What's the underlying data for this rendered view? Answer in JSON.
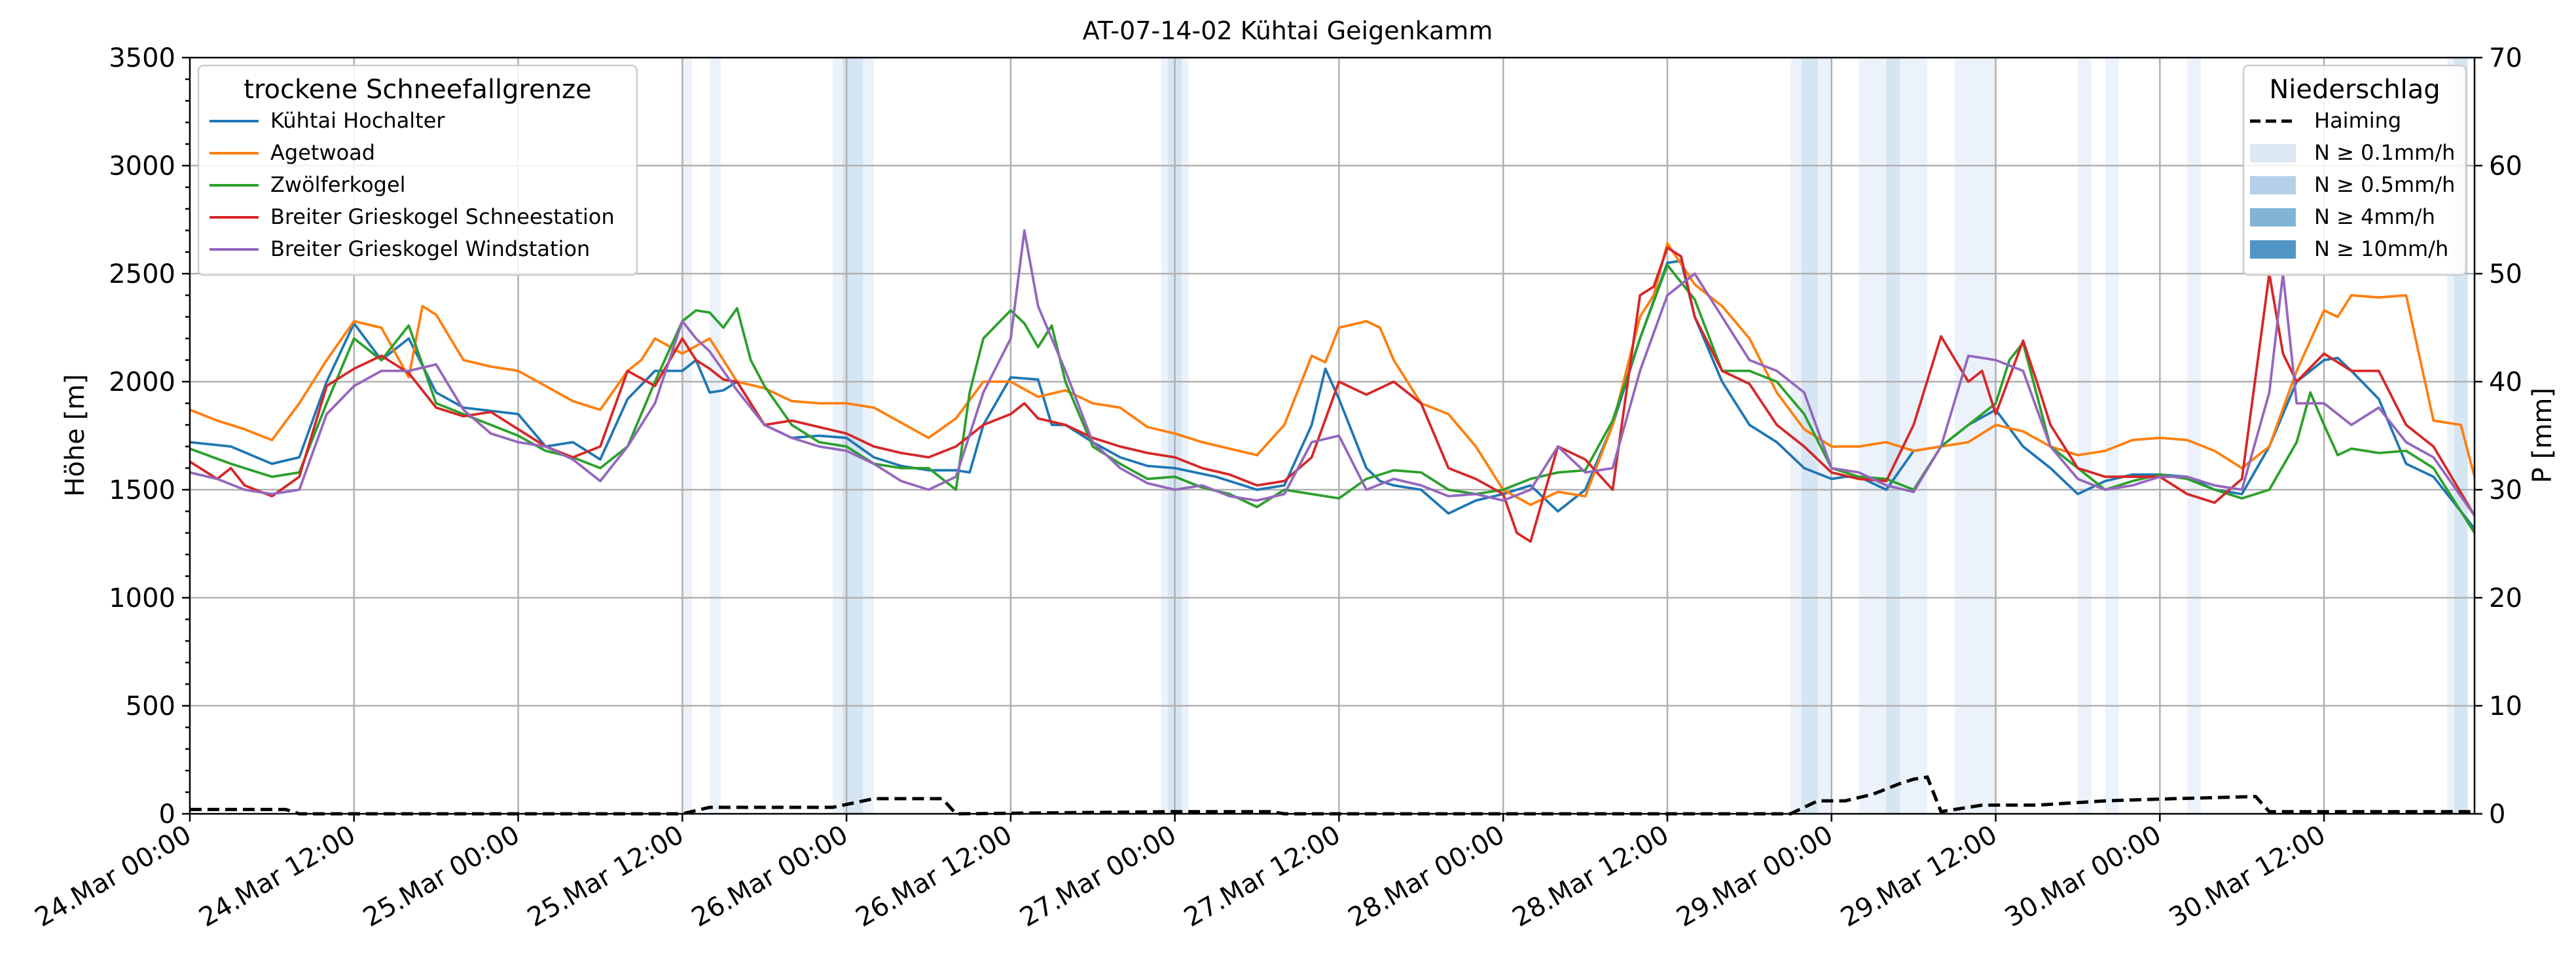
{
  "chart_data": {
    "type": "line",
    "title": "AT-07-14-02 Kühtai Geigenkamm",
    "ylabel_left": "Höhe [m]",
    "ylabel_right": "P [mm]",
    "x_unit": "hours since 24.Mar 00:00",
    "xlim": [
      0,
      167
    ],
    "ylim_left": [
      0,
      3500
    ],
    "ylim_right": [
      0,
      70
    ],
    "yticks_left": [
      0,
      500,
      1000,
      1500,
      2000,
      2500,
      3000,
      3500
    ],
    "yticks_right": [
      0,
      10,
      20,
      30,
      40,
      50,
      60,
      70
    ],
    "xticks": [
      {
        "x": 0,
        "label": "24.Mar 00:00"
      },
      {
        "x": 12,
        "label": "24.Mar 12:00"
      },
      {
        "x": 24,
        "label": "25.Mar 00:00"
      },
      {
        "x": 36,
        "label": "25.Mar 12:00"
      },
      {
        "x": 48,
        "label": "26.Mar 00:00"
      },
      {
        "x": 60,
        "label": "26.Mar 12:00"
      },
      {
        "x": 72,
        "label": "27.Mar 00:00"
      },
      {
        "x": 84,
        "label": "27.Mar 12:00"
      },
      {
        "x": 96,
        "label": "28.Mar 00:00"
      },
      {
        "x": 108,
        "label": "28.Mar 12:00"
      },
      {
        "x": 120,
        "label": "29.Mar 00:00"
      },
      {
        "x": 132,
        "label": "29.Mar 12:00"
      },
      {
        "x": 144,
        "label": "30.Mar 00:00"
      },
      {
        "x": 156,
        "label": "30.Mar 12:00"
      }
    ],
    "legend_left": {
      "title": "trockene Schneefallgrenze",
      "position": "top-left"
    },
    "legend_right": {
      "title": "Niederschlag",
      "position": "top-right",
      "items": [
        {
          "label": "Haiming",
          "kind": "dashed-line",
          "color": "#000000"
        },
        {
          "label": "N ≥ 0.1mm/h",
          "kind": "patch",
          "color": "#dce8f4"
        },
        {
          "label": "N ≥ 0.5mm/h",
          "kind": "patch",
          "color": "#b4d0e8"
        },
        {
          "label": "N ≥ 4mm/h",
          "kind": "patch",
          "color": "#82b4d8"
        },
        {
          "label": "N ≥ 10mm/h",
          "kind": "patch",
          "color": "#5095c6"
        }
      ]
    },
    "precip_bands": [
      {
        "x0": 36.0,
        "x1": 36.7,
        "level": 1
      },
      {
        "x0": 38.0,
        "x1": 38.8,
        "level": 1
      },
      {
        "x0": 47.0,
        "x1": 47.7,
        "level": 1
      },
      {
        "x0": 47.7,
        "x1": 49.2,
        "level": 2
      },
      {
        "x0": 49.2,
        "x1": 50.0,
        "level": 1
      },
      {
        "x0": 71.0,
        "x1": 71.5,
        "level": 1
      },
      {
        "x0": 71.5,
        "x1": 72.5,
        "level": 2
      },
      {
        "x0": 72.5,
        "x1": 73.0,
        "level": 1
      },
      {
        "x0": 117.0,
        "x1": 117.8,
        "level": 1
      },
      {
        "x0": 117.8,
        "x1": 119.0,
        "level": 2
      },
      {
        "x0": 119.0,
        "x1": 120.0,
        "level": 1
      },
      {
        "x0": 122.0,
        "x1": 124.0,
        "level": 1
      },
      {
        "x0": 124.0,
        "x1": 125.0,
        "level": 2
      },
      {
        "x0": 125.0,
        "x1": 127.0,
        "level": 1
      },
      {
        "x0": 129.0,
        "x1": 132.0,
        "level": 1
      },
      {
        "x0": 138.0,
        "x1": 139.0,
        "level": 1
      },
      {
        "x0": 140.0,
        "x1": 141.0,
        "level": 1
      },
      {
        "x0": 146.0,
        "x1": 147.0,
        "level": 1
      },
      {
        "x0": 165.0,
        "x1": 165.5,
        "level": 1
      },
      {
        "x0": 165.5,
        "x1": 166.5,
        "level": 2
      }
    ],
    "precip_line": {
      "name": "Haiming",
      "x": [
        0,
        7,
        8,
        36,
        38,
        47,
        50,
        55,
        56,
        72,
        79,
        80,
        117,
        119,
        121,
        123,
        125,
        126,
        127,
        128,
        129,
        131,
        135,
        140,
        145,
        151,
        152,
        167
      ],
      "y": [
        0.4,
        0.4,
        0,
        0,
        0.6,
        0.6,
        1.4,
        1.4,
        0,
        0.2,
        0.2,
        0,
        0,
        1.2,
        1.2,
        1.8,
        2.8,
        3.2,
        3.4,
        0.2,
        0.4,
        0.8,
        0.8,
        1.2,
        1.4,
        1.6,
        0.2,
        0.2
      ]
    },
    "series": [
      {
        "name": "Kühtai Hochalter",
        "color": "#1f77b4",
        "x": [
          0,
          3,
          6,
          8,
          10,
          12,
          14,
          16,
          18,
          20,
          24,
          26,
          28,
          30,
          32,
          34,
          36,
          37,
          38,
          39,
          40,
          42,
          44,
          46,
          48,
          50,
          52,
          54,
          56,
          57,
          58,
          60,
          62,
          63,
          64,
          66,
          68,
          70,
          72,
          75,
          78,
          80,
          82,
          83,
          84,
          86,
          87,
          88,
          90,
          92,
          94,
          96,
          98,
          100,
          102,
          104,
          105,
          106,
          108,
          109,
          110,
          112,
          113,
          114,
          116,
          118,
          120,
          121,
          122,
          124,
          126,
          128,
          130,
          132,
          134,
          136,
          138,
          140,
          142,
          144,
          146,
          148,
          150,
          152,
          154,
          156,
          157,
          158,
          160,
          162,
          164,
          167
        ],
        "y": [
          1720,
          1700,
          1620,
          1650,
          2000,
          2270,
          2100,
          2200,
          1950,
          1880,
          1850,
          1700,
          1720,
          1640,
          1920,
          2050,
          2050,
          2100,
          1950,
          1960,
          2000,
          1800,
          1740,
          1750,
          1740,
          1650,
          1610,
          1590,
          1590,
          1580,
          1800,
          2020,
          2010,
          1800,
          1800,
          1720,
          1650,
          1610,
          1600,
          1560,
          1500,
          1520,
          1800,
          2060,
          1920,
          1600,
          1540,
          1520,
          1500,
          1390,
          1450,
          1480,
          1520,
          1400,
          1500,
          1800,
          2000,
          2200,
          2550,
          2560,
          2300,
          2000,
          1900,
          1800,
          1720,
          1600,
          1550,
          1560,
          1560,
          1500,
          1680,
          1700,
          1800,
          1870,
          1700,
          1600,
          1480,
          1540,
          1570,
          1570,
          1560,
          1500,
          1480,
          1700,
          2000,
          2100,
          2110,
          2050,
          1920,
          1620,
          1560,
          1320
        ]
      },
      {
        "name": "Agetwoad",
        "color": "#ff7f0e",
        "x": [
          0,
          2,
          4,
          6,
          8,
          10,
          12,
          14,
          16,
          17,
          18,
          20,
          22,
          24,
          26,
          28,
          30,
          32,
          33,
          34,
          36,
          38,
          40,
          42,
          44,
          46,
          48,
          50,
          52,
          54,
          56,
          58,
          60,
          62,
          64,
          66,
          68,
          70,
          72,
          74,
          76,
          78,
          80,
          82,
          83,
          84,
          86,
          87,
          88,
          90,
          92,
          94,
          96,
          98,
          100,
          102,
          104,
          105,
          106,
          107,
          108,
          110,
          112,
          114,
          116,
          118,
          120,
          122,
          124,
          126,
          128,
          130,
          132,
          134,
          136,
          138,
          140,
          142,
          144,
          146,
          148,
          150,
          152,
          154,
          156,
          157,
          158,
          160,
          162,
          164,
          166,
          167
        ],
        "y": [
          1870,
          1820,
          1780,
          1730,
          1900,
          2100,
          2280,
          2250,
          2020,
          2350,
          2310,
          2100,
          2070,
          2050,
          1980,
          1910,
          1870,
          2050,
          2100,
          2200,
          2130,
          2200,
          2000,
          1970,
          1910,
          1900,
          1900,
          1880,
          1810,
          1740,
          1830,
          2000,
          2000,
          1930,
          1960,
          1900,
          1880,
          1790,
          1760,
          1720,
          1690,
          1660,
          1800,
          2120,
          2090,
          2250,
          2280,
          2250,
          2100,
          1900,
          1850,
          1700,
          1500,
          1430,
          1490,
          1470,
          1800,
          2050,
          2300,
          2400,
          2640,
          2450,
          2350,
          2200,
          1950,
          1780,
          1700,
          1700,
          1720,
          1680,
          1700,
          1720,
          1800,
          1770,
          1700,
          1660,
          1680,
          1730,
          1740,
          1730,
          1680,
          1600,
          1700,
          2050,
          2330,
          2300,
          2400,
          2390,
          2400,
          1820,
          1800,
          1560
        ]
      },
      {
        "name": "Zwölferkogel",
        "color": "#2ca02c",
        "x": [
          0,
          3,
          6,
          8,
          10,
          12,
          14,
          16,
          18,
          20,
          22,
          24,
          26,
          28,
          30,
          32,
          34,
          36,
          37,
          38,
          39,
          40,
          41,
          42,
          44,
          46,
          48,
          50,
          52,
          54,
          56,
          57,
          58,
          60,
          61,
          62,
          63,
          64,
          66,
          68,
          70,
          72,
          74,
          76,
          78,
          80,
          82,
          84,
          86,
          88,
          90,
          92,
          94,
          96,
          98,
          100,
          102,
          104,
          106,
          108,
          110,
          112,
          114,
          116,
          118,
          120,
          122,
          124,
          126,
          128,
          130,
          132,
          133,
          134,
          136,
          138,
          140,
          142,
          144,
          146,
          148,
          150,
          152,
          154,
          155,
          156,
          157,
          158,
          160,
          162,
          164,
          167
        ],
        "y": [
          1690,
          1620,
          1560,
          1580,
          1900,
          2200,
          2100,
          2260,
          1900,
          1850,
          1800,
          1750,
          1680,
          1650,
          1600,
          1700,
          2000,
          2280,
          2330,
          2320,
          2250,
          2340,
          2100,
          1980,
          1800,
          1720,
          1700,
          1620,
          1600,
          1600,
          1500,
          1950,
          2200,
          2330,
          2270,
          2160,
          2260,
          2000,
          1700,
          1620,
          1550,
          1560,
          1510,
          1480,
          1420,
          1500,
          1480,
          1460,
          1550,
          1590,
          1580,
          1500,
          1480,
          1500,
          1550,
          1580,
          1590,
          1820,
          2200,
          2540,
          2380,
          2050,
          2050,
          2000,
          1850,
          1600,
          1560,
          1550,
          1500,
          1700,
          1800,
          1900,
          2100,
          2180,
          1700,
          1600,
          1500,
          1540,
          1570,
          1550,
          1500,
          1460,
          1500,
          1720,
          1950,
          1800,
          1660,
          1690,
          1670,
          1680,
          1600,
          1300
        ]
      },
      {
        "name": "Breiter Grieskogel Schneestation",
        "color": "#d62728",
        "x": [
          0,
          2,
          3,
          4,
          6,
          8,
          10,
          12,
          14,
          16,
          18,
          20,
          22,
          24,
          26,
          28,
          30,
          32,
          34,
          36,
          37,
          38,
          39,
          40,
          42,
          44,
          46,
          48,
          50,
          52,
          54,
          56,
          58,
          60,
          61,
          62,
          64,
          66,
          68,
          70,
          72,
          74,
          76,
          78,
          80,
          82,
          84,
          86,
          88,
          90,
          92,
          94,
          96,
          97,
          98,
          100,
          102,
          104,
          106,
          107,
          108,
          109,
          110,
          112,
          114,
          116,
          118,
          120,
          122,
          124,
          126,
          128,
          130,
          131,
          132,
          134,
          135,
          136,
          138,
          140,
          142,
          144,
          146,
          148,
          150,
          152,
          153,
          154,
          156,
          158,
          160,
          162,
          164,
          167
        ],
        "y": [
          1630,
          1550,
          1600,
          1520,
          1470,
          1560,
          1980,
          2060,
          2120,
          2040,
          1880,
          1840,
          1860,
          1780,
          1700,
          1650,
          1700,
          2050,
          1980,
          2200,
          2100,
          2060,
          2010,
          2000,
          1800,
          1820,
          1790,
          1760,
          1700,
          1670,
          1650,
          1700,
          1800,
          1850,
          1900,
          1830,
          1800,
          1740,
          1700,
          1670,
          1650,
          1600,
          1570,
          1520,
          1540,
          1650,
          2000,
          1940,
          2000,
          1900,
          1600,
          1550,
          1480,
          1300,
          1260,
          1700,
          1640,
          1500,
          2400,
          2440,
          2620,
          2580,
          2300,
          2050,
          1990,
          1800,
          1700,
          1580,
          1550,
          1540,
          1800,
          2210,
          2000,
          2050,
          1850,
          2190,
          2000,
          1800,
          1600,
          1560,
          1560,
          1560,
          1480,
          1440,
          1550,
          2500,
          2130,
          2000,
          2130,
          2050,
          2050,
          1800,
          1700,
          1380
        ]
      },
      {
        "name": "Breiter Grieskogel Windstation",
        "color": "#9467bd",
        "x": [
          0,
          2,
          4,
          6,
          8,
          10,
          12,
          14,
          16,
          18,
          20,
          22,
          24,
          26,
          28,
          30,
          32,
          34,
          36,
          37,
          38,
          40,
          42,
          44,
          46,
          48,
          50,
          52,
          54,
          56,
          58,
          60,
          61,
          62,
          64,
          66,
          68,
          70,
          72,
          74,
          76,
          78,
          80,
          82,
          84,
          86,
          88,
          90,
          92,
          94,
          96,
          98,
          100,
          102,
          104,
          106,
          108,
          110,
          112,
          114,
          116,
          117,
          118,
          120,
          122,
          124,
          126,
          128,
          130,
          132,
          134,
          136,
          138,
          140,
          142,
          144,
          146,
          148,
          150,
          152,
          153,
          154,
          156,
          158,
          160,
          162,
          164,
          167
        ],
        "y": [
          1580,
          1550,
          1500,
          1480,
          1500,
          1850,
          1980,
          2050,
          2050,
          2080,
          1870,
          1760,
          1720,
          1700,
          1640,
          1540,
          1700,
          1900,
          2280,
          2200,
          2140,
          1960,
          1800,
          1740,
          1700,
          1680,
          1620,
          1540,
          1500,
          1560,
          1950,
          2200,
          2700,
          2350,
          2050,
          1720,
          1600,
          1530,
          1500,
          1520,
          1470,
          1450,
          1480,
          1720,
          1750,
          1500,
          1550,
          1520,
          1470,
          1480,
          1450,
          1500,
          1700,
          1580,
          1600,
          2050,
          2400,
          2500,
          2300,
          2100,
          2050,
          2000,
          1950,
          1600,
          1580,
          1520,
          1490,
          1700,
          2120,
          2100,
          2050,
          1700,
          1550,
          1500,
          1520,
          1560,
          1560,
          1520,
          1500,
          1950,
          2500,
          1900,
          1900,
          1800,
          1880,
          1720,
          1650,
          1380
        ]
      }
    ]
  }
}
